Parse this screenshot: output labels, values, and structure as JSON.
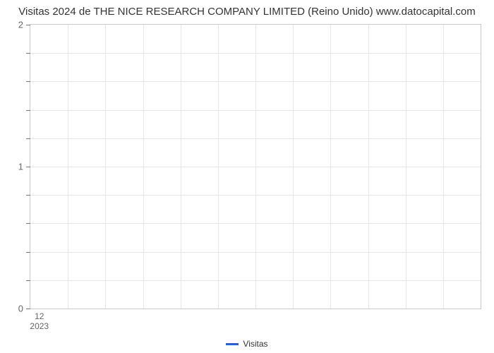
{
  "chart": {
    "type": "line",
    "title": "Visitas 2024 de THE NICE RESEARCH COMPANY LIMITED (Reino Unido) www.datocapital.com",
    "title_fontsize": 15,
    "title_color": "#333333",
    "background_color": "#ffffff",
    "plot_border_color": "#c9c9c9",
    "grid_color": "#e6e6e6",
    "y": {
      "lim": [
        0,
        2
      ],
      "major_ticks": [
        0,
        1,
        2
      ],
      "minor_count_between": 4,
      "label_color": "#666666",
      "label_fontsize": 13
    },
    "x": {
      "vline_count": 12,
      "tick": {
        "month": "12",
        "year": "2023",
        "position_frac": 0.02
      },
      "label_color": "#666666",
      "label_fontsize": 12
    },
    "series": [
      {
        "name": "Visitas",
        "color": "#2b5fd9",
        "line_width": 3,
        "data": []
      }
    ],
    "legend": {
      "label": "Visitas",
      "swatch_color": "#2b5fd9",
      "text_color": "#333333",
      "fontsize": 12
    }
  }
}
